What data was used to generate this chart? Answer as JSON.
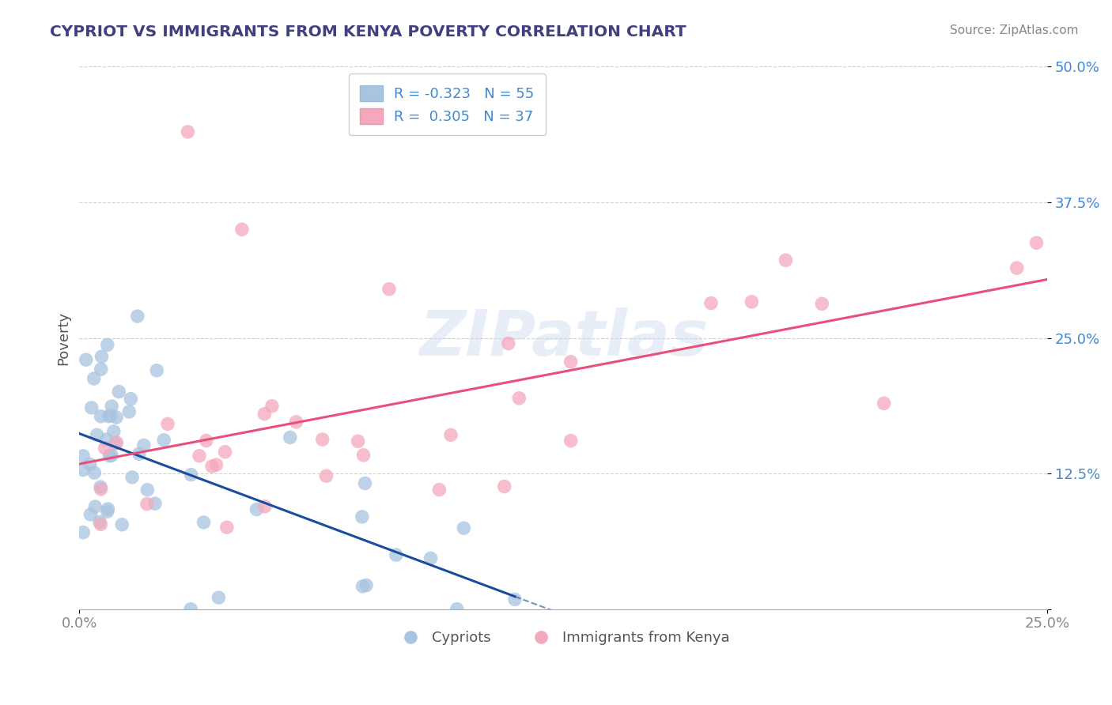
{
  "title": "CYPRIOT VS IMMIGRANTS FROM KENYA POVERTY CORRELATION CHART",
  "source": "Source: ZipAtlas.com",
  "ylabel": "Poverty",
  "cypriot_R": -0.323,
  "cypriot_N": 55,
  "kenya_R": 0.305,
  "kenya_N": 37,
  "cypriot_color": "#a8c4e0",
  "cypriot_edge_color": "#7aaace",
  "cypriot_line_color": "#1a4d9e",
  "kenya_color": "#f4a8bc",
  "kenya_edge_color": "#e888a0",
  "kenya_line_color": "#e8507a",
  "x_min": 0.0,
  "x_max": 0.25,
  "y_min": 0.0,
  "y_max": 0.5,
  "y_ticks": [
    0.0,
    0.125,
    0.25,
    0.375,
    0.5
  ],
  "y_tick_labels": [
    "",
    "12.5%",
    "25.0%",
    "37.5%",
    "50.0%"
  ],
  "watermark": "ZIPatlas",
  "legend_labels": [
    "Cypriots",
    "Immigrants from Kenya"
  ],
  "title_color": "#404080",
  "source_color": "#888888",
  "ylabel_color": "#555555",
  "tick_color_y": "#4488cc",
  "tick_color_x": "#888888",
  "grid_color": "#cccccc"
}
